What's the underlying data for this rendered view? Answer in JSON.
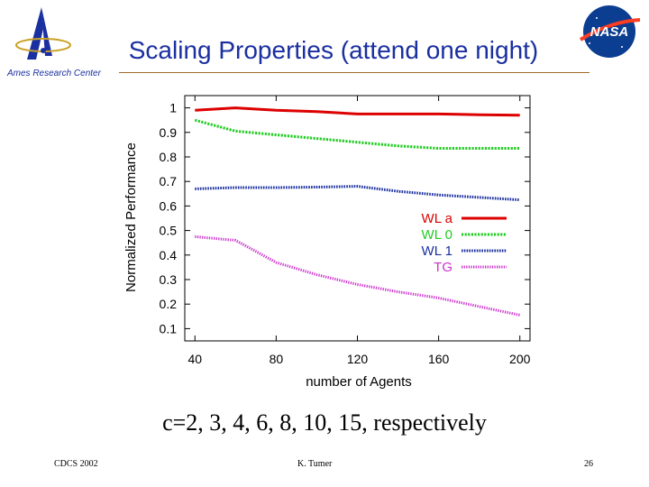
{
  "slide": {
    "title": "Scaling Properties (attend one night)",
    "center_label": "Ames Research Center",
    "caption": "c=2, 3, 4, 6, 8, 10, 15, respectively",
    "footer_left": "CDCS 2002",
    "footer_center": "K. Tumer",
    "page_number": "26"
  },
  "logos": {
    "nasa_text": "NASA"
  },
  "chart_data": {
    "type": "line",
    "xlabel": "number of Agents",
    "ylabel": "Normalized Performance",
    "xlim": [
      35,
      205
    ],
    "ylim": [
      0.05,
      1.05
    ],
    "xticks": [
      40,
      80,
      120,
      160,
      200
    ],
    "yticks": [
      0.1,
      0.2,
      0.3,
      0.4,
      0.5,
      0.6,
      0.7,
      0.8,
      0.9,
      1
    ],
    "legend_position": "right",
    "grid": false,
    "series": [
      {
        "name": "WL a",
        "color": "#dd0000",
        "dash": "",
        "x": [
          40,
          60,
          80,
          100,
          120,
          140,
          160,
          180,
          200
        ],
        "y": [
          0.99,
          1.0,
          0.99,
          0.985,
          0.975,
          0.975,
          0.975,
          0.972,
          0.97
        ]
      },
      {
        "name": "WL 0",
        "color": "#22cc22",
        "dash": "2.2,1.4",
        "x": [
          40,
          60,
          80,
          100,
          120,
          140,
          160,
          180,
          200
        ],
        "y": [
          0.95,
          0.905,
          0.89,
          0.875,
          0.86,
          0.845,
          0.835,
          0.835,
          0.835
        ]
      },
      {
        "name": "WL 1",
        "color": "#1a2fa0",
        "dash": "1.6,1.2",
        "x": [
          40,
          60,
          80,
          100,
          120,
          140,
          160,
          180,
          200
        ],
        "y": [
          0.67,
          0.675,
          0.675,
          0.677,
          0.68,
          0.66,
          0.645,
          0.635,
          0.625
        ]
      },
      {
        "name": "TG",
        "color": "#cc33cc",
        "dash": "1.3,1.3",
        "x": [
          40,
          60,
          80,
          100,
          120,
          140,
          160,
          180,
          200
        ],
        "y": [
          0.475,
          0.46,
          0.37,
          0.32,
          0.28,
          0.25,
          0.225,
          0.19,
          0.155
        ]
      }
    ]
  }
}
